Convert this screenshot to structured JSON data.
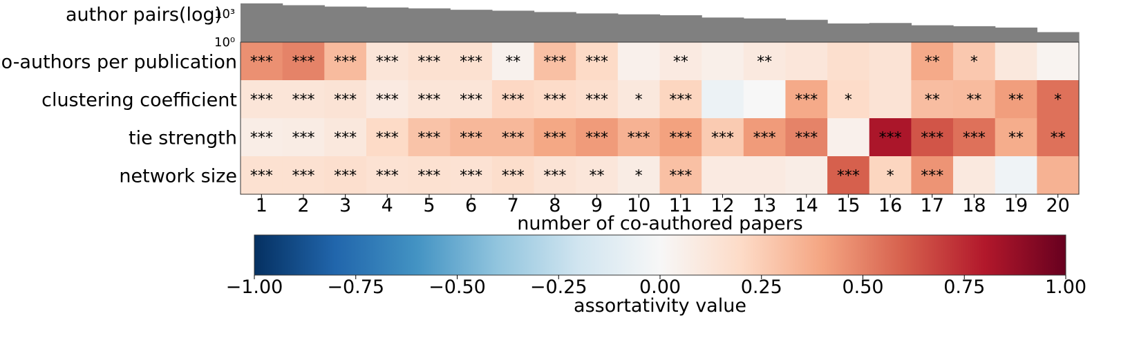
{
  "chart_data": {
    "type": "heatmap",
    "histogram": {
      "label": "author pairs(log)",
      "tick_labels": [
        "10³",
        "10⁰"
      ],
      "scale": "log",
      "bar_color": "#808080",
      "values_log10": [
        4.25,
        4.05,
        3.9,
        3.8,
        3.7,
        3.55,
        3.45,
        3.3,
        3.15,
        3.05,
        2.95,
        2.7,
        2.6,
        2.45,
        2.05,
        2.1,
        1.85,
        1.75,
        1.6,
        1.1
      ]
    },
    "rows": [
      "co-authors per publication",
      "clustering coefficient",
      "tie strength",
      "network size"
    ],
    "columns": [
      "1",
      "2",
      "3",
      "4",
      "5",
      "6",
      "7",
      "8",
      "9",
      "10",
      "11",
      "12",
      "13",
      "14",
      "15",
      "16",
      "17",
      "18",
      "19",
      "20"
    ],
    "values": [
      [
        0.46,
        0.5,
        0.32,
        0.13,
        0.16,
        0.16,
        0.04,
        0.3,
        0.2,
        0.05,
        0.09,
        0.06,
        0.1,
        0.12,
        0.17,
        0.14,
        0.38,
        0.27,
        0.11,
        0.03
      ],
      [
        0.13,
        0.13,
        0.14,
        0.09,
        0.13,
        0.13,
        0.21,
        0.19,
        0.17,
        0.11,
        0.22,
        -0.06,
        0.0,
        0.38,
        0.19,
        0.14,
        0.31,
        0.32,
        0.42,
        0.55
      ],
      [
        0.07,
        0.08,
        0.11,
        0.2,
        0.29,
        0.33,
        0.33,
        0.39,
        0.43,
        0.35,
        0.41,
        0.26,
        0.43,
        0.5,
        0.05,
        0.82,
        0.63,
        0.55,
        0.37,
        0.55
      ],
      [
        0.16,
        0.16,
        0.17,
        0.15,
        0.16,
        0.15,
        0.18,
        0.14,
        0.12,
        0.08,
        0.3,
        0.09,
        0.09,
        0.07,
        0.6,
        0.22,
        0.45,
        0.1,
        -0.04,
        0.35
      ]
    ],
    "annotations": [
      [
        "***",
        "***",
        "***",
        "***",
        "***",
        "***",
        "**",
        "***",
        "***",
        "",
        "**",
        "",
        "**",
        "",
        "",
        "",
        "**",
        "*",
        "",
        ""
      ],
      [
        "***",
        "***",
        "***",
        "***",
        "***",
        "***",
        "***",
        "***",
        "***",
        "*",
        "***",
        "",
        "",
        "***",
        "*",
        "",
        "**",
        "**",
        "**",
        "*"
      ],
      [
        "***",
        "***",
        "***",
        "***",
        "***",
        "***",
        "***",
        "***",
        "***",
        "***",
        "***",
        "***",
        "***",
        "***",
        "",
        "***",
        "***",
        "***",
        "**",
        "**"
      ],
      [
        "***",
        "***",
        "***",
        "***",
        "***",
        "***",
        "***",
        "***",
        "**",
        "*",
        "***",
        "",
        "",
        "",
        "***",
        "*",
        "***",
        "",
        "",
        ""
      ]
    ],
    "xlabel": "number of co-authored papers",
    "colorbar": {
      "label": "assortativity value",
      "colormap": "RdBu_r",
      "range": [
        -1.0,
        1.0
      ],
      "tick_values": [
        -1.0,
        -0.75,
        -0.5,
        -0.25,
        0.0,
        0.25,
        0.5,
        0.75,
        1.0
      ],
      "tick_labels": [
        "−1.00",
        "−0.75",
        "−0.50",
        "−0.25",
        "0.00",
        "0.25",
        "0.50",
        "0.75",
        "1.00"
      ],
      "stops": [
        [
          "0.0",
          "#053061"
        ],
        [
          "0.1",
          "#2166ac"
        ],
        [
          "0.2",
          "#4393c3"
        ],
        [
          "0.3",
          "#92c5de"
        ],
        [
          "0.4",
          "#d1e5f0"
        ],
        [
          "0.5",
          "#f7f7f7"
        ],
        [
          "0.6",
          "#fddbc7"
        ],
        [
          "0.7",
          "#f4a582"
        ],
        [
          "0.8",
          "#d6604d"
        ],
        [
          "0.9",
          "#b2182b"
        ],
        [
          "1.0",
          "#67001f"
        ]
      ]
    }
  }
}
